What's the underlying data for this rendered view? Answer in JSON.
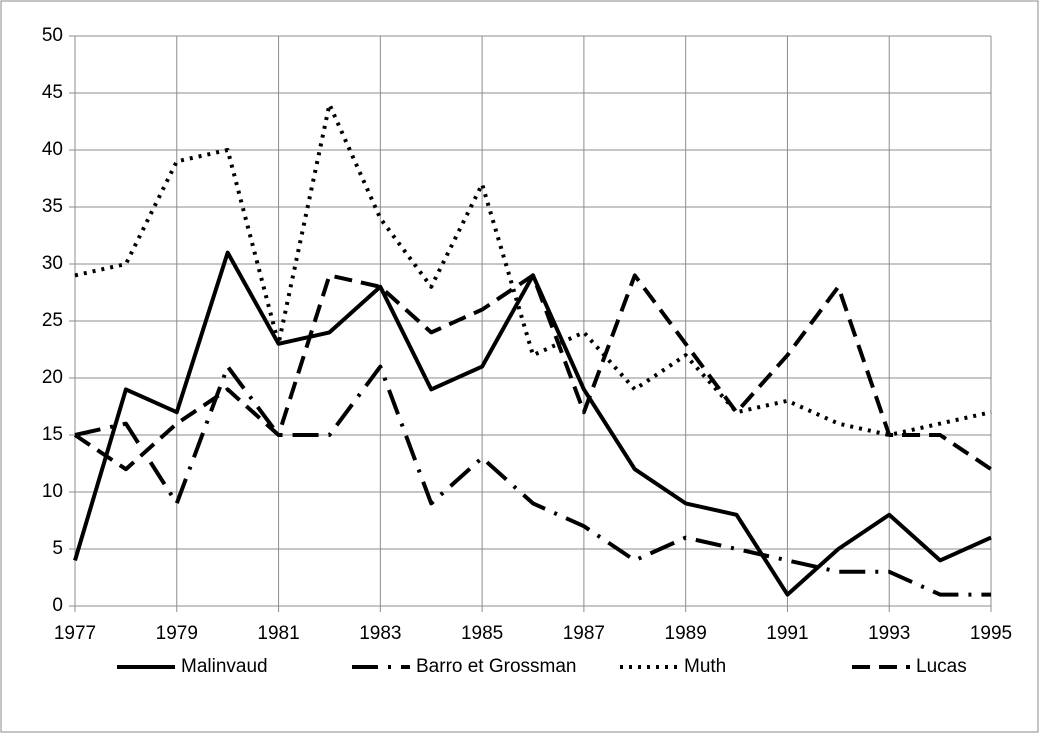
{
  "chart_data": {
    "type": "line",
    "x": [
      1977,
      1978,
      1979,
      1980,
      1981,
      1982,
      1983,
      1984,
      1985,
      1986,
      1987,
      1988,
      1989,
      1990,
      1991,
      1992,
      1993,
      1994,
      1995
    ],
    "xlim": [
      1977,
      1995
    ],
    "xticks": [
      1977,
      1979,
      1981,
      1983,
      1985,
      1987,
      1989,
      1991,
      1993,
      1995
    ],
    "ylim": [
      0,
      50
    ],
    "yticks": [
      0,
      5,
      10,
      15,
      20,
      25,
      30,
      35,
      40,
      45,
      50
    ],
    "grid": true,
    "legend": "bottom",
    "series": [
      {
        "name": "Malinvaud",
        "color": "#000000",
        "dash": "solid",
        "values": [
          4,
          19,
          17,
          31,
          23,
          24,
          28,
          19,
          21,
          29,
          19,
          12,
          9,
          8,
          1,
          5,
          8,
          4,
          6
        ]
      },
      {
        "name": "Barro et Grossman",
        "color": "#000000",
        "dash": "dashdot",
        "values": [
          15,
          16,
          9,
          21,
          15,
          15,
          21,
          9,
          13,
          9,
          7,
          4,
          6,
          5,
          4,
          3,
          3,
          1,
          1
        ]
      },
      {
        "name": "Muth",
        "color": "#000000",
        "dash": "dotted",
        "values": [
          29,
          30,
          39,
          40,
          23,
          44,
          34,
          28,
          37,
          22,
          24,
          19,
          22,
          17,
          18,
          16,
          15,
          16,
          17
        ]
      },
      {
        "name": "Lucas",
        "color": "#000000",
        "dash": "dashed",
        "values": [
          15,
          12,
          16,
          19,
          15,
          29,
          28,
          24,
          26,
          29,
          17,
          29,
          23,
          17,
          22,
          28,
          15,
          15,
          12
        ]
      }
    ]
  }
}
